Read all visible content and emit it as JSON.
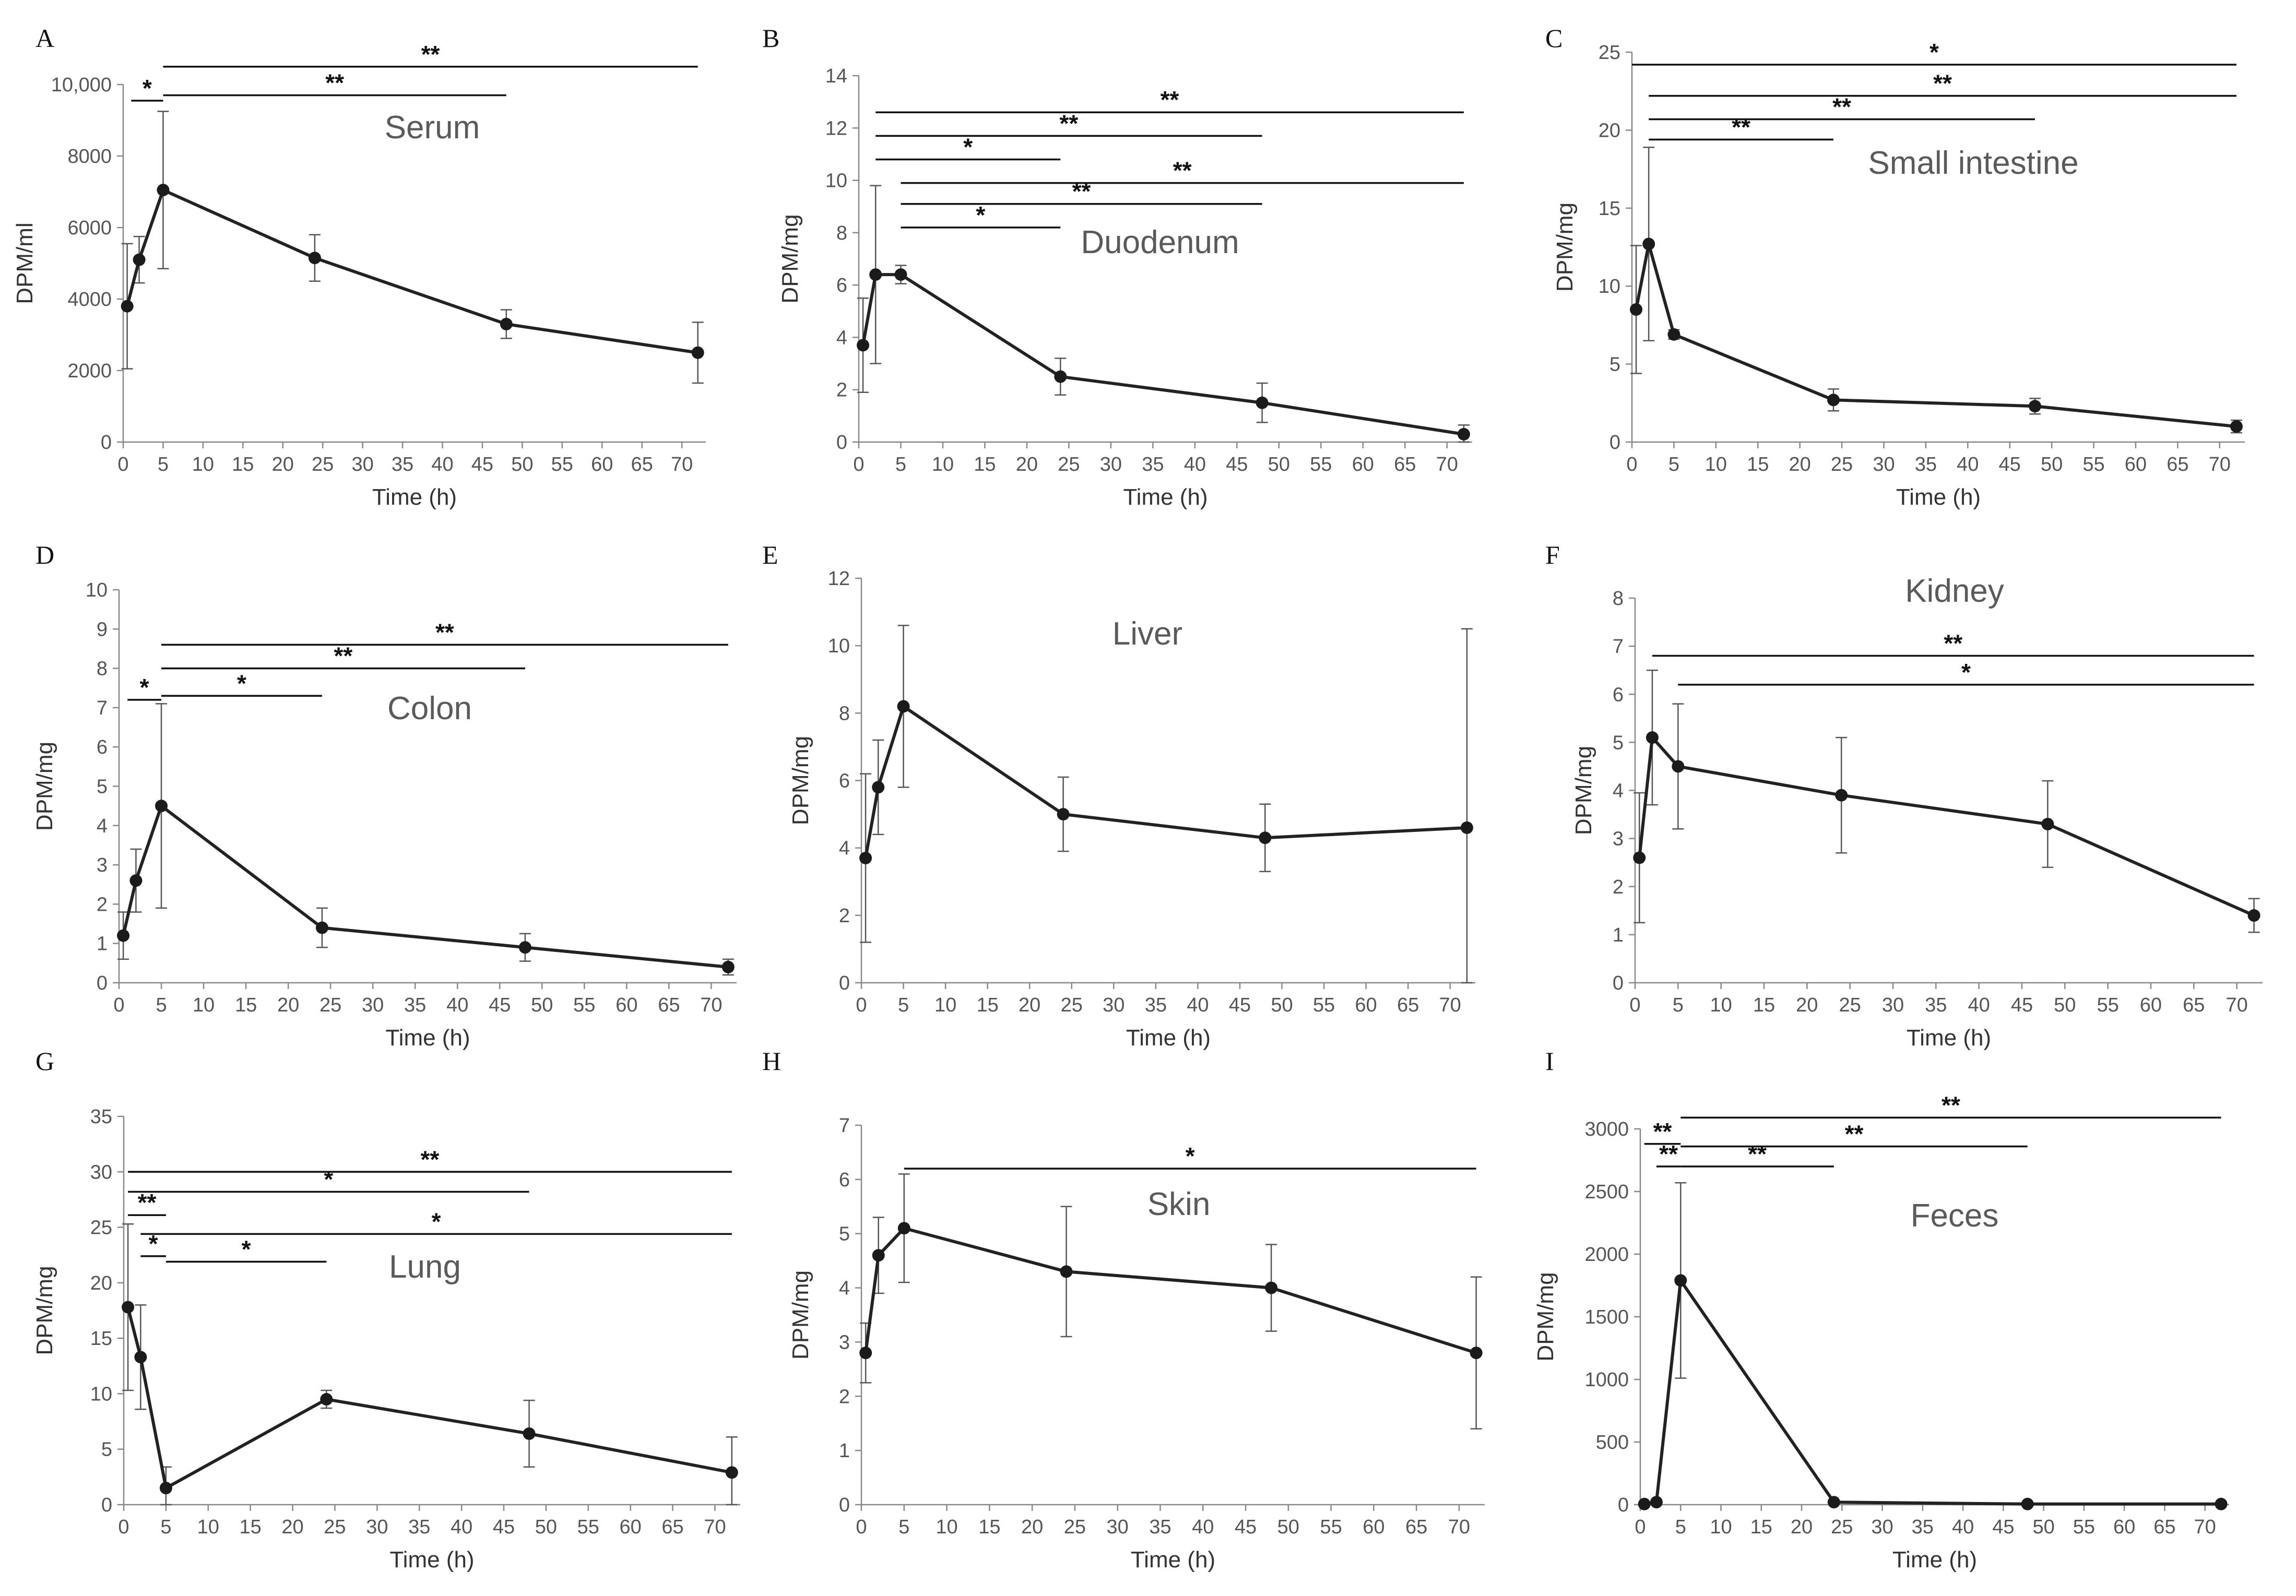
{
  "figure": {
    "xlabel": "Time (h)",
    "xticks": [
      0,
      5,
      10,
      15,
      20,
      25,
      30,
      35,
      40,
      45,
      50,
      55,
      60,
      65,
      70
    ],
    "xlim": [
      0,
      73
    ]
  },
  "chart_data": [
    {
      "type": "line",
      "letter": "A",
      "title": "Serum",
      "ylabel": "DPM/ml",
      "xlabel": "Time (h)",
      "ylim": [
        0,
        10000
      ],
      "yticks": [
        0,
        2000,
        4000,
        6000,
        8000,
        10000
      ],
      "ytick_labels": [
        "0",
        "2000",
        "4000",
        "6000",
        "8000",
        "10,000"
      ],
      "x": [
        0.5,
        2,
        5,
        24,
        48,
        72
      ],
      "values": [
        3800,
        5100,
        7050,
        5150,
        3300,
        2500
      ],
      "errors": [
        1750,
        650,
        2200,
        650,
        400,
        850
      ],
      "significance": [
        {
          "x1": 1,
          "x2": 5,
          "y": 9550,
          "label": "*"
        },
        {
          "x1": 5,
          "x2": 48,
          "y": 9700,
          "label": "**"
        },
        {
          "x1": 5,
          "x2": 72,
          "y": 10500,
          "label": "**"
        }
      ]
    },
    {
      "type": "line",
      "letter": "B",
      "title": "Duodenum",
      "ylabel": "DPM/mg",
      "xlabel": "Time (h)",
      "ylim": [
        0,
        14
      ],
      "yticks": [
        0,
        2,
        4,
        6,
        8,
        10,
        12,
        14
      ],
      "ytick_labels": [
        "0",
        "2",
        "4",
        "6",
        "8",
        "10",
        "12",
        "14"
      ],
      "x": [
        0.5,
        2,
        5,
        24,
        48,
        72
      ],
      "values": [
        3.7,
        6.4,
        6.4,
        2.5,
        1.5,
        0.3
      ],
      "errors": [
        1.8,
        3.4,
        0.35,
        0.7,
        0.75,
        0.35
      ],
      "significance": [
        {
          "x1": 2,
          "x2": 72,
          "y": 12.6,
          "label": "**"
        },
        {
          "x1": 2,
          "x2": 48,
          "y": 11.7,
          "label": "**"
        },
        {
          "x1": 2,
          "x2": 24,
          "y": 10.8,
          "label": "*"
        },
        {
          "x1": 5,
          "x2": 72,
          "y": 9.9,
          "label": "**"
        },
        {
          "x1": 5,
          "x2": 48,
          "y": 9.1,
          "label": "**"
        },
        {
          "x1": 5,
          "x2": 24,
          "y": 8.2,
          "label": "*"
        }
      ]
    },
    {
      "type": "line",
      "letter": "C",
      "title": "Small intestine",
      "ylabel": "DPM/mg",
      "xlabel": "Time (h)",
      "ylim": [
        0,
        25
      ],
      "yticks": [
        0,
        5,
        10,
        15,
        20,
        25
      ],
      "ytick_labels": [
        "0",
        "5",
        "10",
        "15",
        "20",
        "25"
      ],
      "x": [
        0.5,
        2,
        5,
        24,
        48,
        72
      ],
      "values": [
        8.5,
        12.7,
        6.9,
        2.7,
        2.3,
        1.0
      ],
      "errors": [
        4.1,
        6.2,
        0.3,
        0.7,
        0.5,
        0.4
      ],
      "significance": [
        {
          "x1": 0,
          "x2": 72,
          "y": 24.2,
          "label": "*"
        },
        {
          "x1": 2,
          "x2": 72,
          "y": 22.2,
          "label": "**"
        },
        {
          "x1": 2,
          "x2": 48,
          "y": 20.7,
          "label": "**"
        },
        {
          "x1": 2,
          "x2": 24,
          "y": 19.4,
          "label": "**"
        }
      ]
    },
    {
      "type": "line",
      "letter": "D",
      "title": "Colon",
      "ylabel": "DPM/mg",
      "xlabel": "Time (h)",
      "ylim": [
        0,
        10
      ],
      "yticks": [
        0,
        1,
        2,
        3,
        4,
        5,
        6,
        7,
        8,
        9,
        10
      ],
      "ytick_labels": [
        "0",
        "1",
        "2",
        "3",
        "4",
        "5",
        "6",
        "7",
        "8",
        "9",
        "10"
      ],
      "x": [
        0.5,
        2,
        5,
        24,
        48,
        72
      ],
      "values": [
        1.2,
        2.6,
        4.5,
        1.4,
        0.9,
        0.4
      ],
      "errors": [
        0.6,
        0.8,
        2.6,
        0.5,
        0.35,
        0.2
      ],
      "significance": [
        {
          "x1": 1,
          "x2": 5,
          "y": 7.2,
          "label": "*"
        },
        {
          "x1": 5,
          "x2": 24,
          "y": 7.3,
          "label": "*"
        },
        {
          "x1": 5,
          "x2": 48,
          "y": 8.0,
          "label": "**"
        },
        {
          "x1": 5,
          "x2": 72,
          "y": 8.6,
          "label": "**"
        }
      ]
    },
    {
      "type": "line",
      "letter": "E",
      "title": "Liver",
      "ylabel": "DPM/mg",
      "xlabel": "Time (h)",
      "ylim": [
        0,
        12
      ],
      "yticks": [
        0,
        2,
        4,
        6,
        8,
        10,
        12
      ],
      "ytick_labels": [
        "0",
        "2",
        "4",
        "6",
        "8",
        "10",
        "12"
      ],
      "x": [
        0.5,
        2,
        5,
        24,
        48,
        72
      ],
      "values": [
        3.7,
        5.8,
        8.2,
        5.0,
        4.3,
        4.6
      ],
      "errors": [
        2.5,
        1.4,
        2.4,
        1.1,
        1.0,
        5.9
      ],
      "significance": []
    },
    {
      "type": "line",
      "letter": "F",
      "title": "Kidney",
      "ylabel": "DPM/mg",
      "xlabel": "Time (h)",
      "ylim": [
        0,
        8
      ],
      "yticks": [
        0,
        1,
        2,
        3,
        4,
        5,
        6,
        7,
        8
      ],
      "ytick_labels": [
        "0",
        "1",
        "2",
        "3",
        "4",
        "5",
        "6",
        "7",
        "8"
      ],
      "x": [
        0.5,
        2,
        5,
        24,
        48,
        72
      ],
      "values": [
        2.6,
        5.1,
        4.5,
        3.9,
        3.3,
        1.4
      ],
      "errors": [
        1.35,
        1.4,
        1.3,
        1.2,
        0.9,
        0.35
      ],
      "significance": [
        {
          "x1": 2,
          "x2": 72,
          "y": 6.8,
          "label": "**"
        },
        {
          "x1": 5,
          "x2": 72,
          "y": 6.2,
          "label": "*"
        }
      ]
    },
    {
      "type": "line",
      "letter": "G",
      "title": "Lung",
      "ylabel": "DPM/mg",
      "xlabel": "Time (h)",
      "ylim": [
        0,
        35
      ],
      "yticks": [
        0,
        5,
        10,
        15,
        20,
        25,
        30,
        35
      ],
      "ytick_labels": [
        "0",
        "5",
        "10",
        "15",
        "20",
        "25",
        "30",
        "35"
      ],
      "x": [
        0.5,
        2,
        5,
        24,
        48,
        72
      ],
      "values": [
        17.8,
        13.3,
        1.5,
        9.5,
        6.4,
        2.9
      ],
      "errors": [
        7.5,
        4.7,
        1.9,
        0.8,
        3.0,
        3.2
      ],
      "significance": [
        {
          "x1": 0.5,
          "x2": 72,
          "y": 30.0,
          "label": "**"
        },
        {
          "x1": 0.5,
          "x2": 48,
          "y": 28.2,
          "label": "*"
        },
        {
          "x1": 0.5,
          "x2": 5,
          "y": 26.1,
          "label": "**"
        },
        {
          "x1": 2,
          "x2": 72,
          "y": 24.4,
          "label": "*"
        },
        {
          "x1": 2,
          "x2": 5,
          "y": 22.4,
          "label": "*"
        },
        {
          "x1": 5,
          "x2": 24,
          "y": 21.9,
          "label": "*"
        }
      ]
    },
    {
      "type": "line",
      "letter": "H",
      "title": "Skin",
      "ylabel": "DPM/mg",
      "xlabel": "Time (h)",
      "ylim": [
        0,
        7
      ],
      "yticks": [
        0,
        1,
        2,
        3,
        4,
        5,
        6,
        7
      ],
      "ytick_labels": [
        "0",
        "1",
        "2",
        "3",
        "4",
        "5",
        "6",
        "7"
      ],
      "x": [
        0.5,
        2,
        5,
        24,
        48,
        72
      ],
      "values": [
        2.8,
        4.6,
        5.1,
        4.3,
        4.0,
        2.8
      ],
      "errors": [
        0.55,
        0.7,
        1.0,
        1.2,
        0.8,
        1.4
      ],
      "significance": [
        {
          "x1": 5,
          "x2": 72,
          "y": 6.2,
          "label": "*"
        }
      ]
    },
    {
      "type": "line",
      "letter": "I",
      "title": "Feces",
      "ylabel": "DPM/mg",
      "xlabel": "Time (h)",
      "ylim": [
        0,
        3000
      ],
      "yticks": [
        0,
        500,
        1000,
        1500,
        2000,
        2500,
        3000
      ],
      "ytick_labels": [
        "0",
        "500",
        "1000",
        "1500",
        "2000",
        "2500",
        "3000"
      ],
      "x": [
        0.5,
        2,
        5,
        24,
        48,
        72
      ],
      "values": [
        5,
        20,
        1790,
        20,
        5,
        5
      ],
      "errors": [
        0,
        0,
        780,
        0,
        0,
        0
      ],
      "significance": [
        {
          "x1": 0.5,
          "x2": 5,
          "y": 2880,
          "label": "**"
        },
        {
          "x1": 5,
          "x2": 72,
          "y": 3090,
          "label": "**"
        },
        {
          "x1": 5,
          "x2": 48,
          "y": 2860,
          "label": "**"
        },
        {
          "x1": 2,
          "x2": 5,
          "y": 2700,
          "label": "**"
        },
        {
          "x1": 5,
          "x2": 24,
          "y": 2700,
          "label": "**"
        }
      ]
    }
  ]
}
